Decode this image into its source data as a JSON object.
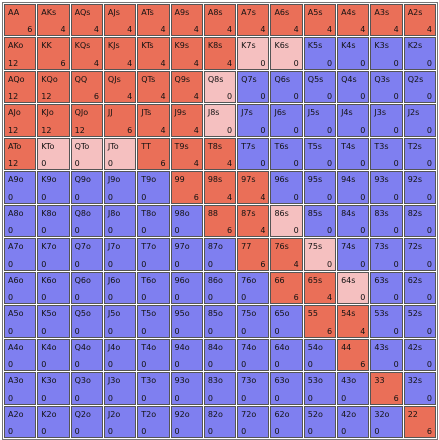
{
  "grid": {
    "ranks": [
      "A",
      "K",
      "Q",
      "J",
      "T",
      "9",
      "8",
      "7",
      "6",
      "5",
      "4",
      "3",
      "2"
    ],
    "colors": {
      "red": "#ea6f58",
      "pink": "#f5c0c0",
      "blue": "#7f7ff0"
    },
    "cells": [
      [
        {
          "hand": "AA",
          "count": "6",
          "color": "red"
        },
        {
          "hand": "AKs",
          "count": "4",
          "color": "red"
        },
        {
          "hand": "AQs",
          "count": "4",
          "color": "red"
        },
        {
          "hand": "AJs",
          "count": "4",
          "color": "red"
        },
        {
          "hand": "ATs",
          "count": "4",
          "color": "red"
        },
        {
          "hand": "A9s",
          "count": "4",
          "color": "red"
        },
        {
          "hand": "A8s",
          "count": "4",
          "color": "red"
        },
        {
          "hand": "A7s",
          "count": "4",
          "color": "red"
        },
        {
          "hand": "A6s",
          "count": "4",
          "color": "red"
        },
        {
          "hand": "A5s",
          "count": "4",
          "color": "red"
        },
        {
          "hand": "A4s",
          "count": "4",
          "color": "red"
        },
        {
          "hand": "A3s",
          "count": "4",
          "color": "red"
        },
        {
          "hand": "A2s",
          "count": "4",
          "color": "red"
        }
      ],
      [
        {
          "hand": "AKo",
          "count": "12",
          "color": "red"
        },
        {
          "hand": "KK",
          "count": "6",
          "color": "red"
        },
        {
          "hand": "KQs",
          "count": "4",
          "color": "red"
        },
        {
          "hand": "KJs",
          "count": "4",
          "color": "red"
        },
        {
          "hand": "KTs",
          "count": "4",
          "color": "red"
        },
        {
          "hand": "K9s",
          "count": "4",
          "color": "red"
        },
        {
          "hand": "K8s",
          "count": "4",
          "color": "red"
        },
        {
          "hand": "K7s",
          "count": "0",
          "color": "pink"
        },
        {
          "hand": "K6s",
          "count": "0",
          "color": "pink"
        },
        {
          "hand": "K5s",
          "count": "0",
          "color": "blue"
        },
        {
          "hand": "K4s",
          "count": "0",
          "color": "blue"
        },
        {
          "hand": "K3s",
          "count": "0",
          "color": "blue"
        },
        {
          "hand": "K2s",
          "count": "0",
          "color": "blue"
        }
      ],
      [
        {
          "hand": "AQo",
          "count": "12",
          "color": "red"
        },
        {
          "hand": "KQo",
          "count": "12",
          "color": "red"
        },
        {
          "hand": "QQ",
          "count": "6",
          "color": "red"
        },
        {
          "hand": "QJs",
          "count": "4",
          "color": "red"
        },
        {
          "hand": "QTs",
          "count": "4",
          "color": "red"
        },
        {
          "hand": "Q9s",
          "count": "4",
          "color": "red"
        },
        {
          "hand": "Q8s",
          "count": "0",
          "color": "pink"
        },
        {
          "hand": "Q7s",
          "count": "0",
          "color": "blue"
        },
        {
          "hand": "Q6s",
          "count": "0",
          "color": "blue"
        },
        {
          "hand": "Q5s",
          "count": "0",
          "color": "blue"
        },
        {
          "hand": "Q4s",
          "count": "0",
          "color": "blue"
        },
        {
          "hand": "Q3s",
          "count": "0",
          "color": "blue"
        },
        {
          "hand": "Q2s",
          "count": "0",
          "color": "blue"
        }
      ],
      [
        {
          "hand": "AJo",
          "count": "12",
          "color": "red"
        },
        {
          "hand": "KJo",
          "count": "12",
          "color": "red"
        },
        {
          "hand": "QJo",
          "count": "12",
          "color": "red"
        },
        {
          "hand": "JJ",
          "count": "6",
          "color": "red"
        },
        {
          "hand": "JTs",
          "count": "4",
          "color": "red"
        },
        {
          "hand": "J9s",
          "count": "4",
          "color": "red"
        },
        {
          "hand": "J8s",
          "count": "0",
          "color": "pink"
        },
        {
          "hand": "J7s",
          "count": "0",
          "color": "blue"
        },
        {
          "hand": "J6s",
          "count": "0",
          "color": "blue"
        },
        {
          "hand": "J5s",
          "count": "0",
          "color": "blue"
        },
        {
          "hand": "J4s",
          "count": "0",
          "color": "blue"
        },
        {
          "hand": "J3s",
          "count": "0",
          "color": "blue"
        },
        {
          "hand": "J2s",
          "count": "0",
          "color": "blue"
        }
      ],
      [
        {
          "hand": "ATo",
          "count": "12",
          "color": "red"
        },
        {
          "hand": "KTo",
          "count": "0",
          "color": "pink"
        },
        {
          "hand": "QTo",
          "count": "0",
          "color": "pink"
        },
        {
          "hand": "JTo",
          "count": "0",
          "color": "pink"
        },
        {
          "hand": "TT",
          "count": "6",
          "color": "red"
        },
        {
          "hand": "T9s",
          "count": "4",
          "color": "red"
        },
        {
          "hand": "T8s",
          "count": "4",
          "color": "red"
        },
        {
          "hand": "T7s",
          "count": "0",
          "color": "blue"
        },
        {
          "hand": "T6s",
          "count": "0",
          "color": "blue"
        },
        {
          "hand": "T5s",
          "count": "0",
          "color": "blue"
        },
        {
          "hand": "T4s",
          "count": "0",
          "color": "blue"
        },
        {
          "hand": "T3s",
          "count": "0",
          "color": "blue"
        },
        {
          "hand": "T2s",
          "count": "0",
          "color": "blue"
        }
      ],
      [
        {
          "hand": "A9o",
          "count": "0",
          "color": "blue"
        },
        {
          "hand": "K9o",
          "count": "0",
          "color": "blue"
        },
        {
          "hand": "Q9o",
          "count": "0",
          "color": "blue"
        },
        {
          "hand": "J9o",
          "count": "0",
          "color": "blue"
        },
        {
          "hand": "T9o",
          "count": "0",
          "color": "blue"
        },
        {
          "hand": "99",
          "count": "6",
          "color": "red"
        },
        {
          "hand": "98s",
          "count": "4",
          "color": "red"
        },
        {
          "hand": "97s",
          "count": "4",
          "color": "red"
        },
        {
          "hand": "96s",
          "count": "0",
          "color": "blue"
        },
        {
          "hand": "95s",
          "count": "0",
          "color": "blue"
        },
        {
          "hand": "94s",
          "count": "0",
          "color": "blue"
        },
        {
          "hand": "93s",
          "count": "0",
          "color": "blue"
        },
        {
          "hand": "92s",
          "count": "0",
          "color": "blue"
        }
      ],
      [
        {
          "hand": "A8o",
          "count": "0",
          "color": "blue"
        },
        {
          "hand": "K8o",
          "count": "0",
          "color": "blue"
        },
        {
          "hand": "Q8o",
          "count": "0",
          "color": "blue"
        },
        {
          "hand": "J8o",
          "count": "0",
          "color": "blue"
        },
        {
          "hand": "T8o",
          "count": "0",
          "color": "blue"
        },
        {
          "hand": "98o",
          "count": "0",
          "color": "blue"
        },
        {
          "hand": "88",
          "count": "6",
          "color": "red"
        },
        {
          "hand": "87s",
          "count": "4",
          "color": "red"
        },
        {
          "hand": "86s",
          "count": "0",
          "color": "pink"
        },
        {
          "hand": "85s",
          "count": "0",
          "color": "blue"
        },
        {
          "hand": "84s",
          "count": "0",
          "color": "blue"
        },
        {
          "hand": "83s",
          "count": "0",
          "color": "blue"
        },
        {
          "hand": "82s",
          "count": "0",
          "color": "blue"
        }
      ],
      [
        {
          "hand": "A7o",
          "count": "0",
          "color": "blue"
        },
        {
          "hand": "K7o",
          "count": "0",
          "color": "blue"
        },
        {
          "hand": "Q7o",
          "count": "0",
          "color": "blue"
        },
        {
          "hand": "J7o",
          "count": "0",
          "color": "blue"
        },
        {
          "hand": "T7o",
          "count": "0",
          "color": "blue"
        },
        {
          "hand": "97o",
          "count": "0",
          "color": "blue"
        },
        {
          "hand": "87o",
          "count": "0",
          "color": "blue"
        },
        {
          "hand": "77",
          "count": "6",
          "color": "red"
        },
        {
          "hand": "76s",
          "count": "4",
          "color": "red"
        },
        {
          "hand": "75s",
          "count": "0",
          "color": "pink"
        },
        {
          "hand": "74s",
          "count": "0",
          "color": "blue"
        },
        {
          "hand": "73s",
          "count": "0",
          "color": "blue"
        },
        {
          "hand": "72s",
          "count": "0",
          "color": "blue"
        }
      ],
      [
        {
          "hand": "A6o",
          "count": "0",
          "color": "blue"
        },
        {
          "hand": "K6o",
          "count": "0",
          "color": "blue"
        },
        {
          "hand": "Q6o",
          "count": "0",
          "color": "blue"
        },
        {
          "hand": "J6o",
          "count": "0",
          "color": "blue"
        },
        {
          "hand": "T6o",
          "count": "0",
          "color": "blue"
        },
        {
          "hand": "96o",
          "count": "0",
          "color": "blue"
        },
        {
          "hand": "86o",
          "count": "0",
          "color": "blue"
        },
        {
          "hand": "76o",
          "count": "0",
          "color": "blue"
        },
        {
          "hand": "66",
          "count": "6",
          "color": "red"
        },
        {
          "hand": "65s",
          "count": "4",
          "color": "red"
        },
        {
          "hand": "64s",
          "count": "0",
          "color": "pink"
        },
        {
          "hand": "63s",
          "count": "0",
          "color": "blue"
        },
        {
          "hand": "62s",
          "count": "0",
          "color": "blue"
        }
      ],
      [
        {
          "hand": "A5o",
          "count": "0",
          "color": "blue"
        },
        {
          "hand": "K5o",
          "count": "0",
          "color": "blue"
        },
        {
          "hand": "Q5o",
          "count": "0",
          "color": "blue"
        },
        {
          "hand": "J5o",
          "count": "0",
          "color": "blue"
        },
        {
          "hand": "T5o",
          "count": "0",
          "color": "blue"
        },
        {
          "hand": "95o",
          "count": "0",
          "color": "blue"
        },
        {
          "hand": "85o",
          "count": "0",
          "color": "blue"
        },
        {
          "hand": "75o",
          "count": "0",
          "color": "blue"
        },
        {
          "hand": "65o",
          "count": "0",
          "color": "blue"
        },
        {
          "hand": "55",
          "count": "6",
          "color": "red"
        },
        {
          "hand": "54s",
          "count": "4",
          "color": "red"
        },
        {
          "hand": "53s",
          "count": "0",
          "color": "blue"
        },
        {
          "hand": "52s",
          "count": "0",
          "color": "blue"
        }
      ],
      [
        {
          "hand": "A4o",
          "count": "0",
          "color": "blue"
        },
        {
          "hand": "K4o",
          "count": "0",
          "color": "blue"
        },
        {
          "hand": "Q4o",
          "count": "0",
          "color": "blue"
        },
        {
          "hand": "J4o",
          "count": "0",
          "color": "blue"
        },
        {
          "hand": "T4o",
          "count": "0",
          "color": "blue"
        },
        {
          "hand": "94o",
          "count": "0",
          "color": "blue"
        },
        {
          "hand": "84o",
          "count": "0",
          "color": "blue"
        },
        {
          "hand": "74o",
          "count": "0",
          "color": "blue"
        },
        {
          "hand": "64o",
          "count": "0",
          "color": "blue"
        },
        {
          "hand": "54o",
          "count": "0",
          "color": "blue"
        },
        {
          "hand": "44",
          "count": "6",
          "color": "red"
        },
        {
          "hand": "43s",
          "count": "0",
          "color": "blue"
        },
        {
          "hand": "42s",
          "count": "0",
          "color": "blue"
        }
      ],
      [
        {
          "hand": "A3o",
          "count": "0",
          "color": "blue"
        },
        {
          "hand": "K3o",
          "count": "0",
          "color": "blue"
        },
        {
          "hand": "Q3o",
          "count": "0",
          "color": "blue"
        },
        {
          "hand": "J3o",
          "count": "0",
          "color": "blue"
        },
        {
          "hand": "T3o",
          "count": "0",
          "color": "blue"
        },
        {
          "hand": "93o",
          "count": "0",
          "color": "blue"
        },
        {
          "hand": "83o",
          "count": "0",
          "color": "blue"
        },
        {
          "hand": "73o",
          "count": "0",
          "color": "blue"
        },
        {
          "hand": "63o",
          "count": "0",
          "color": "blue"
        },
        {
          "hand": "53o",
          "count": "0",
          "color": "blue"
        },
        {
          "hand": "43o",
          "count": "0",
          "color": "blue"
        },
        {
          "hand": "33",
          "count": "6",
          "color": "red"
        },
        {
          "hand": "32s",
          "count": "0",
          "color": "blue"
        }
      ],
      [
        {
          "hand": "A2o",
          "count": "0",
          "color": "blue"
        },
        {
          "hand": "K2o",
          "count": "0",
          "color": "blue"
        },
        {
          "hand": "Q2o",
          "count": "0",
          "color": "blue"
        },
        {
          "hand": "J2o",
          "count": "0",
          "color": "blue"
        },
        {
          "hand": "T2o",
          "count": "0",
          "color": "blue"
        },
        {
          "hand": "92o",
          "count": "0",
          "color": "blue"
        },
        {
          "hand": "82o",
          "count": "0",
          "color": "blue"
        },
        {
          "hand": "72o",
          "count": "0",
          "color": "blue"
        },
        {
          "hand": "62o",
          "count": "0",
          "color": "blue"
        },
        {
          "hand": "52o",
          "count": "0",
          "color": "blue"
        },
        {
          "hand": "42o",
          "count": "0",
          "color": "blue"
        },
        {
          "hand": "32o",
          "count": "0",
          "color": "blue"
        },
        {
          "hand": "22",
          "count": "6",
          "color": "red"
        }
      ]
    ]
  }
}
